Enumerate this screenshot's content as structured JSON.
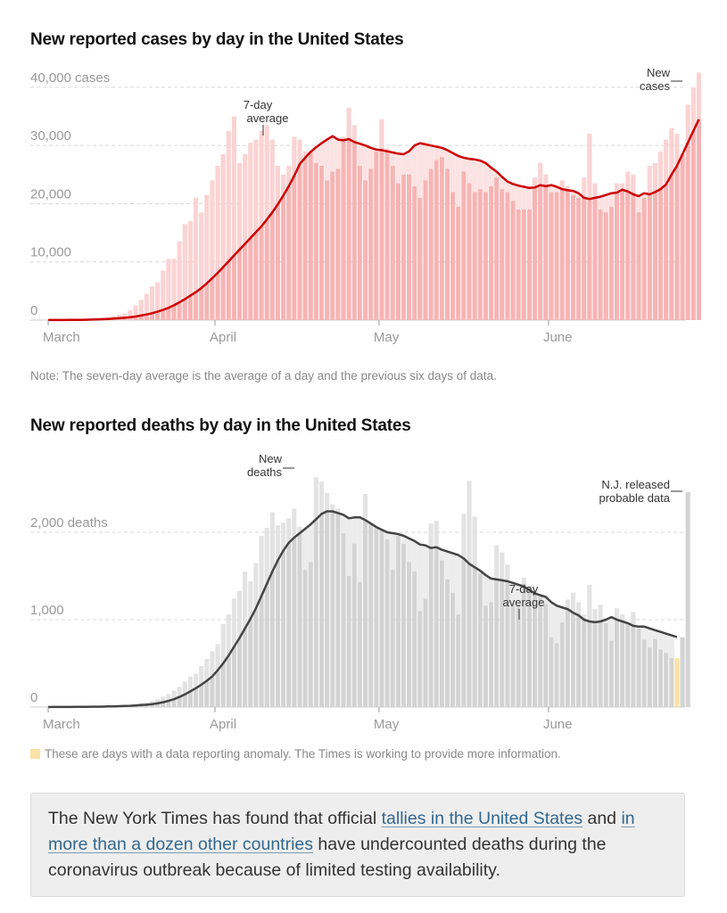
{
  "cases_chart": {
    "title": "New reported cases by day in the United States",
    "note": "Note: The seven-day average is the average of a day and the previous six days of data.",
    "annotations": {
      "avg_label_line1": "7-day",
      "avg_label_line2": "average",
      "bar_label_line1": "New",
      "bar_label_line2": "cases"
    },
    "colors": {
      "bar": "#f7b4b4",
      "bar_above": "#fbd3d3",
      "band": "#fbe3e3",
      "line": "#cc0000"
    }
  },
  "deaths_chart": {
    "title": "New reported deaths by day in the United States",
    "legend_text": "These are days with a data reporting anomaly. The Times is working to provide more information.",
    "annotations": {
      "avg_label_line1": "7-day",
      "avg_label_line2": "average",
      "bar_label_line1": "New",
      "bar_label_line2": "deaths",
      "anomaly_label_line1": "N.J. released",
      "anomaly_label_line2": "probable data"
    },
    "colors": {
      "bar": "#d3d3d3",
      "bar_above": "#e3e3e3",
      "band": "#ececec",
      "line": "#444444",
      "anomaly": "#fde2a6"
    }
  },
  "callout": {
    "text_before": "The New York Times has found that official ",
    "link1": "tallies in the United States",
    "text_middle": " and ",
    "link2": "in more than a dozen other countries",
    "text_after": " have undercounted deaths during the coronavirus outbreak because of limited testing availability."
  },
  "chart_data": [
    {
      "type": "bar",
      "title": "New reported cases by day in the United States",
      "xlabel": "",
      "ylabel": "cases",
      "x_start": "March 1",
      "x_end": "June 24",
      "x_ticks": [
        "March",
        "April",
        "May",
        "June"
      ],
      "x_tick_days": [
        0,
        31,
        61,
        92
      ],
      "y_ticks": [
        0,
        10000,
        20000,
        30000,
        40000
      ],
      "y_tick_labels": [
        "0",
        "10,000",
        "20,000",
        "30,000",
        "40,000 cases"
      ],
      "ylim": [
        0,
        40000
      ],
      "grid": true,
      "series": [
        {
          "name": "New cases",
          "values": [
            10,
            15,
            25,
            30,
            50,
            80,
            110,
            140,
            200,
            300,
            400,
            500,
            700,
            900,
            1100,
            1700,
            2500,
            3500,
            4500,
            5800,
            6500,
            8500,
            10500,
            10500,
            13500,
            16500,
            17000,
            21000,
            18500,
            21500,
            24000,
            26500,
            28500,
            32500,
            35000,
            27000,
            28500,
            30500,
            31000,
            32500,
            33500,
            31000,
            26500,
            25000,
            26500,
            31500,
            31000,
            29000,
            29000,
            27000,
            26500,
            24000,
            25500,
            26000,
            31500,
            36500,
            33500,
            26500,
            24000,
            26000,
            29000,
            34500,
            29500,
            26500,
            23500,
            25000,
            25000,
            23000,
            21000,
            24000,
            26000,
            27500,
            28000,
            26000,
            22000,
            19500,
            25500,
            23500,
            22000,
            22500,
            22000,
            23000,
            24500,
            22500,
            22000,
            20500,
            19000,
            19000,
            19000,
            24500,
            27000,
            25000,
            22000,
            22000,
            24000,
            23000,
            21500,
            21000,
            24500,
            32000,
            23500,
            19000,
            18500,
            19500,
            23500,
            23500,
            25500,
            25000,
            18500,
            21000,
            26500,
            27000,
            29000,
            31000,
            33000,
            32000,
            28500,
            37000,
            40000,
            42500
          ]
        },
        {
          "name": "7-day average",
          "values": [
            10,
            12,
            17,
            20,
            26,
            34,
            44,
            62,
            88,
            120,
            160,
            200,
            255,
            325,
            400,
            500,
            620,
            780,
            960,
            1180,
            1440,
            1740,
            2100,
            2550,
            3050,
            3600,
            4200,
            4800,
            5500,
            6300,
            7200,
            8100,
            9100,
            10100,
            11100,
            12100,
            13100,
            14100,
            15100,
            16100,
            17300,
            18500,
            19900,
            21400,
            23000,
            24800,
            26800,
            27900,
            28900,
            29700,
            30400,
            31000,
            31600,
            31000,
            30900,
            31100,
            30600,
            30300,
            30000,
            29600,
            29300,
            29200,
            29000,
            28800,
            28600,
            28500,
            29000,
            30000,
            30400,
            30200,
            30000,
            29800,
            29600,
            29200,
            28700,
            28200,
            27900,
            27700,
            27600,
            27400,
            27000,
            26200,
            25500,
            24600,
            23800,
            23400,
            23100,
            22900,
            22700,
            22800,
            23200,
            23000,
            23200,
            22900,
            22500,
            22300,
            22200,
            21800,
            21000,
            20800,
            21000,
            21200,
            21500,
            21800,
            21900,
            22400,
            22100,
            21600,
            21300,
            21800,
            21600,
            22000,
            22500,
            23300,
            25000,
            26500,
            28500,
            30500,
            32500,
            34500
          ]
        }
      ]
    },
    {
      "type": "bar",
      "title": "New reported deaths by day in the United States",
      "xlabel": "",
      "ylabel": "deaths",
      "x_start": "March 1",
      "x_end": "June 24",
      "x_ticks": [
        "March",
        "April",
        "May",
        "June"
      ],
      "x_tick_days": [
        0,
        31,
        61,
        92
      ],
      "y_ticks": [
        0,
        1000,
        2000
      ],
      "y_tick_labels": [
        "0",
        "1,000",
        "2,000 deaths"
      ],
      "ylim": [
        0,
        2700
      ],
      "grid": true,
      "anomaly_days": [
        115
      ],
      "series": [
        {
          "name": "New deaths",
          "values": [
            0,
            1,
            1,
            1,
            2,
            2,
            3,
            4,
            5,
            6,
            8,
            10,
            12,
            15,
            18,
            25,
            35,
            45,
            55,
            70,
            90,
            120,
            150,
            190,
            230,
            290,
            350,
            380,
            470,
            550,
            640,
            720,
            950,
            1060,
            1240,
            1330,
            1550,
            1440,
            1650,
            1960,
            2050,
            2230,
            2080,
            2110,
            2160,
            2270,
            2060,
            1570,
            1660,
            2630,
            2580,
            2450,
            2320,
            2270,
            1990,
            1500,
            1870,
            1430,
            2440,
            2090,
            2050,
            2030,
            1920,
            1570,
            1960,
            1870,
            1660,
            1550,
            1100,
            1240,
            2100,
            2130,
            1680,
            1460,
            1310,
            1060,
            2210,
            2590,
            2180,
            1530,
            1160,
            1200,
            1850,
            1770,
            1630,
            1180,
            1170,
            1480,
            1390,
            1330,
            1280,
            1180,
            800,
            730,
            970,
            1230,
            1310,
            1200,
            1060,
            1400,
            1120,
            1170,
            960,
            760,
            1130,
            1060,
            960,
            1090,
            900,
            770,
            680,
            780,
            660,
            620,
            560,
            560,
            800,
            2460
          ]
        },
        {
          "name": "7-day average",
          "values": [
            0,
            1,
            1,
            1,
            1,
            2,
            2,
            3,
            4,
            4,
            5,
            7,
            8,
            10,
            12,
            14,
            18,
            22,
            27,
            34,
            42,
            55,
            70,
            90,
            115,
            145,
            180,
            215,
            255,
            300,
            350,
            420,
            500,
            590,
            690,
            790,
            900,
            1010,
            1130,
            1270,
            1410,
            1550,
            1680,
            1790,
            1880,
            1940,
            1990,
            2040,
            2090,
            2150,
            2210,
            2240,
            2240,
            2220,
            2200,
            2160,
            2170,
            2170,
            2140,
            2100,
            2060,
            2030,
            2000,
            1990,
            1980,
            1960,
            1930,
            1900,
            1860,
            1850,
            1820,
            1830,
            1800,
            1780,
            1760,
            1740,
            1700,
            1640,
            1600,
            1560,
            1510,
            1470,
            1460,
            1450,
            1440,
            1420,
            1400,
            1380,
            1340,
            1300,
            1280,
            1260,
            1200,
            1160,
            1140,
            1120,
            1080,
            1050,
            1000,
            980,
            970,
            980,
            1000,
            1030,
            1000,
            980,
            960,
            930,
            920,
            920,
            900,
            880,
            860,
            840,
            820,
            800
          ]
        }
      ]
    }
  ]
}
